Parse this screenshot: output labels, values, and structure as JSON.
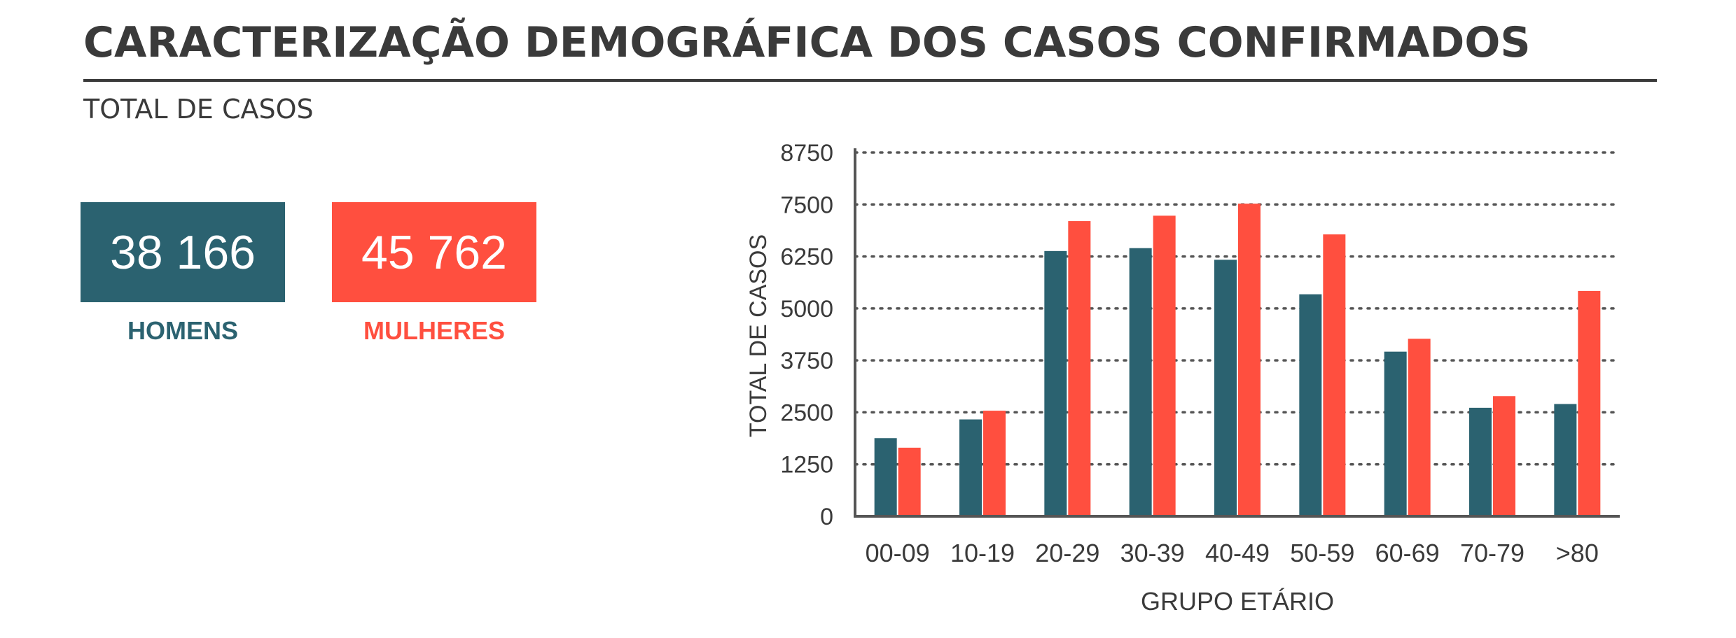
{
  "header": {
    "title": "CARACTERIZAÇÃO DEMOGRÁFICA DOS CASOS CONFIRMADOS",
    "subtitle": "TOTAL DE CASOS"
  },
  "kpis": {
    "men": {
      "value": "38 166",
      "label": "HOMENS",
      "color": "#2b6270"
    },
    "women": {
      "value": "45 762",
      "label": "MULHERES",
      "color": "#ff4f3f"
    }
  },
  "chart_data": {
    "type": "bar",
    "categories": [
      "00-09",
      "10-19",
      "20-29",
      "30-39",
      "40-49",
      "50-59",
      "60-69",
      "70-79",
      ">80"
    ],
    "series": [
      {
        "color": "#2b6270",
        "values": [
          1880,
          2330,
          6380,
          6450,
          6170,
          5340,
          3960,
          2610,
          2700
        ]
      },
      {
        "color": "#ff4f3f",
        "values": [
          1650,
          2540,
          7100,
          7230,
          7520,
          6780,
          4270,
          2890,
          5420
        ]
      }
    ],
    "xlabel": "GRUPO ETÁRIO",
    "ylabel": "TOTAL DE CASOS",
    "ylim": [
      0,
      8750
    ],
    "yticks": [
      "0",
      "1250",
      "2500",
      "3750",
      "5000",
      "6250",
      "7500",
      "8750"
    ],
    "grid": true
  }
}
